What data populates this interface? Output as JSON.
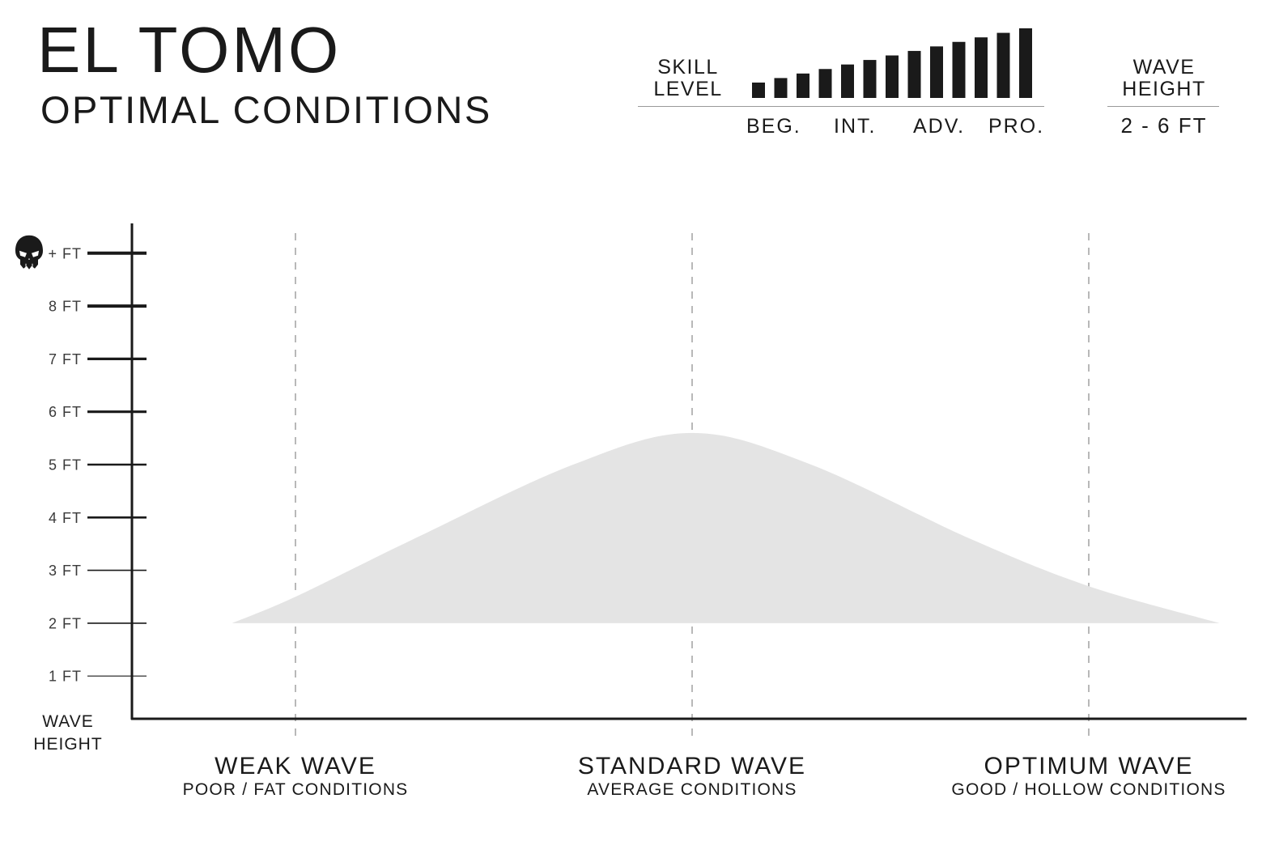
{
  "header": {
    "title": "EL TOMO",
    "subtitle": "OPTIMAL CONDITIONS"
  },
  "skill": {
    "label_line1": "SKILL",
    "label_line2": "LEVEL",
    "bar_count": 13,
    "ticks": [
      "BEG.",
      "INT.",
      "ADV.",
      "PRO."
    ]
  },
  "wave_height_box": {
    "label_line1": "WAVE",
    "label_line2": "HEIGHT",
    "value": "2 - 6 FT"
  },
  "chart_data": {
    "type": "area",
    "xlabel": "",
    "ylabel": "WAVE HEIGHT",
    "ylabel_line1": "WAVE",
    "ylabel_line2": "HEIGHT",
    "ylim": [
      0,
      9
    ],
    "y_ticks": [
      {
        "value": 9,
        "label": "+ FT",
        "icon": "skull-icon"
      },
      {
        "value": 8,
        "label": "8 FT"
      },
      {
        "value": 7,
        "label": "7 FT"
      },
      {
        "value": 6,
        "label": "6 FT"
      },
      {
        "value": 5,
        "label": "5 FT"
      },
      {
        "value": 4,
        "label": "4 FT"
      },
      {
        "value": 3,
        "label": "3 FT"
      },
      {
        "value": 2,
        "label": "2 FT"
      },
      {
        "value": 1,
        "label": "1 FT"
      }
    ],
    "categories": [
      {
        "title": "WEAK WAVE",
        "sub": "POOR / FAT CONDITIONS"
      },
      {
        "title": "STANDARD WAVE",
        "sub": "AVERAGE CONDITIONS"
      },
      {
        "title": "OPTIMUM WAVE",
        "sub": "GOOD / HOLLOW CONDITIONS"
      }
    ],
    "xlim": [
      -0.16,
      2.33
    ],
    "series": [
      {
        "x": [
          -0.16,
          0.0,
          0.3,
          0.7,
          1.0,
          1.3,
          1.7,
          2.0,
          2.33
        ],
        "values": [
          2.0,
          2.5,
          3.6,
          5.0,
          5.6,
          5.0,
          3.6,
          2.7,
          2.0
        ],
        "baseline": 2.0
      }
    ],
    "grid": "vertical dashed lines at categories",
    "colors": {
      "fill": "#e4e4e4",
      "axis": "#1a1a1a",
      "grid": "#9a9a9a"
    }
  }
}
